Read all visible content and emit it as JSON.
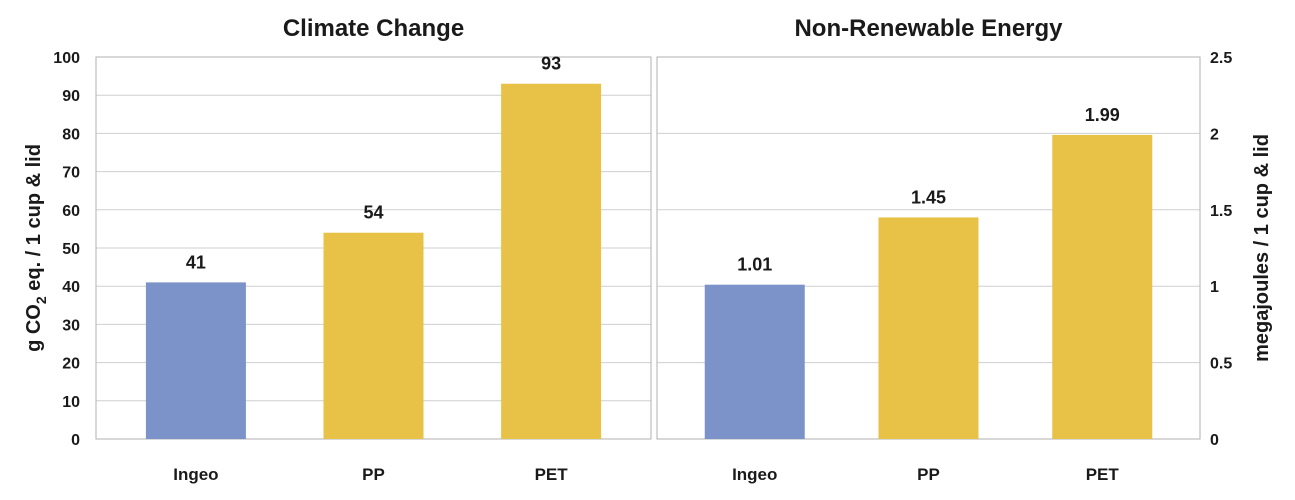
{
  "chart_data": [
    {
      "type": "bar",
      "title": "Climate Change",
      "ylabel": "g CO2 eq. / 1 cup & lid",
      "ylabel_main": "g CO",
      "ylabel_sub": "2",
      "ylabel_rest": " eq. / 1 cup & lid",
      "categories": [
        "Ingeo",
        "PP",
        "PET"
      ],
      "values": [
        41,
        54,
        93
      ],
      "value_labels": [
        "41",
        "54",
        "93"
      ],
      "colors": [
        "#7b93c8",
        "#e8c147",
        "#e8c147"
      ],
      "ylim": [
        0,
        100
      ],
      "yticks": [
        0,
        10,
        20,
        30,
        40,
        50,
        60,
        70,
        80,
        90,
        100
      ],
      "ytick_labels": [
        "0",
        "10",
        "20",
        "30",
        "40",
        "50",
        "60",
        "70",
        "80",
        "90",
        "100"
      ],
      "grid": true
    },
    {
      "type": "bar",
      "title": "Non-Renewable Energy",
      "ylabel": "megajoules / 1 cup & lid",
      "categories": [
        "Ingeo",
        "PP",
        "PET"
      ],
      "values": [
        1.01,
        1.45,
        1.99
      ],
      "value_labels": [
        "1.01",
        "1.45",
        "1.99"
      ],
      "colors": [
        "#7b93c8",
        "#e8c147",
        "#e8c147"
      ],
      "ylim": [
        0,
        2.5
      ],
      "yticks": [
        0,
        0.5,
        1,
        1.5,
        2,
        2.5
      ],
      "ytick_labels": [
        "0",
        "0.5",
        "1",
        "1.5",
        "2",
        "2.5"
      ],
      "grid": true
    }
  ]
}
